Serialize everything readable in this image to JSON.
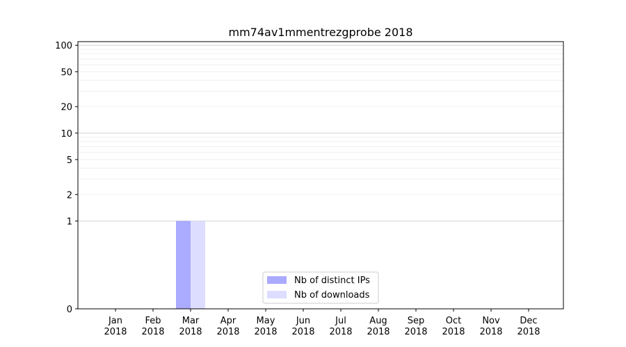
{
  "chart_data": {
    "type": "bar",
    "title": "mm74av1mmentrezgprobe 2018",
    "xlabel": "",
    "ylabel": "",
    "yscale": "symlog",
    "ylim": [
      0,
      110
    ],
    "y_ticks": [
      0,
      1,
      2,
      5,
      10,
      20,
      50,
      100
    ],
    "y_tick_labels": [
      "0",
      "1",
      "2",
      "5",
      "10",
      "20",
      "50",
      "100"
    ],
    "grid": true,
    "legend_position": "bottom-center",
    "categories": [
      {
        "month": "Jan",
        "year": "2018"
      },
      {
        "month": "Feb",
        "year": "2018"
      },
      {
        "month": "Mar",
        "year": "2018"
      },
      {
        "month": "Apr",
        "year": "2018"
      },
      {
        "month": "May",
        "year": "2018"
      },
      {
        "month": "Jun",
        "year": "2018"
      },
      {
        "month": "Jul",
        "year": "2018"
      },
      {
        "month": "Aug",
        "year": "2018"
      },
      {
        "month": "Sep",
        "year": "2018"
      },
      {
        "month": "Oct",
        "year": "2018"
      },
      {
        "month": "Nov",
        "year": "2018"
      },
      {
        "month": "Dec",
        "year": "2018"
      }
    ],
    "series": [
      {
        "name": "Nb of distinct IPs",
        "color": "#aaaaff",
        "values": [
          0,
          0,
          1,
          0,
          0,
          0,
          0,
          0,
          0,
          0,
          0,
          0
        ]
      },
      {
        "name": "Nb of downloads",
        "color": "#ddddff",
        "values": [
          0,
          0,
          1,
          0,
          0,
          0,
          0,
          0,
          0,
          0,
          0,
          0
        ]
      }
    ]
  }
}
